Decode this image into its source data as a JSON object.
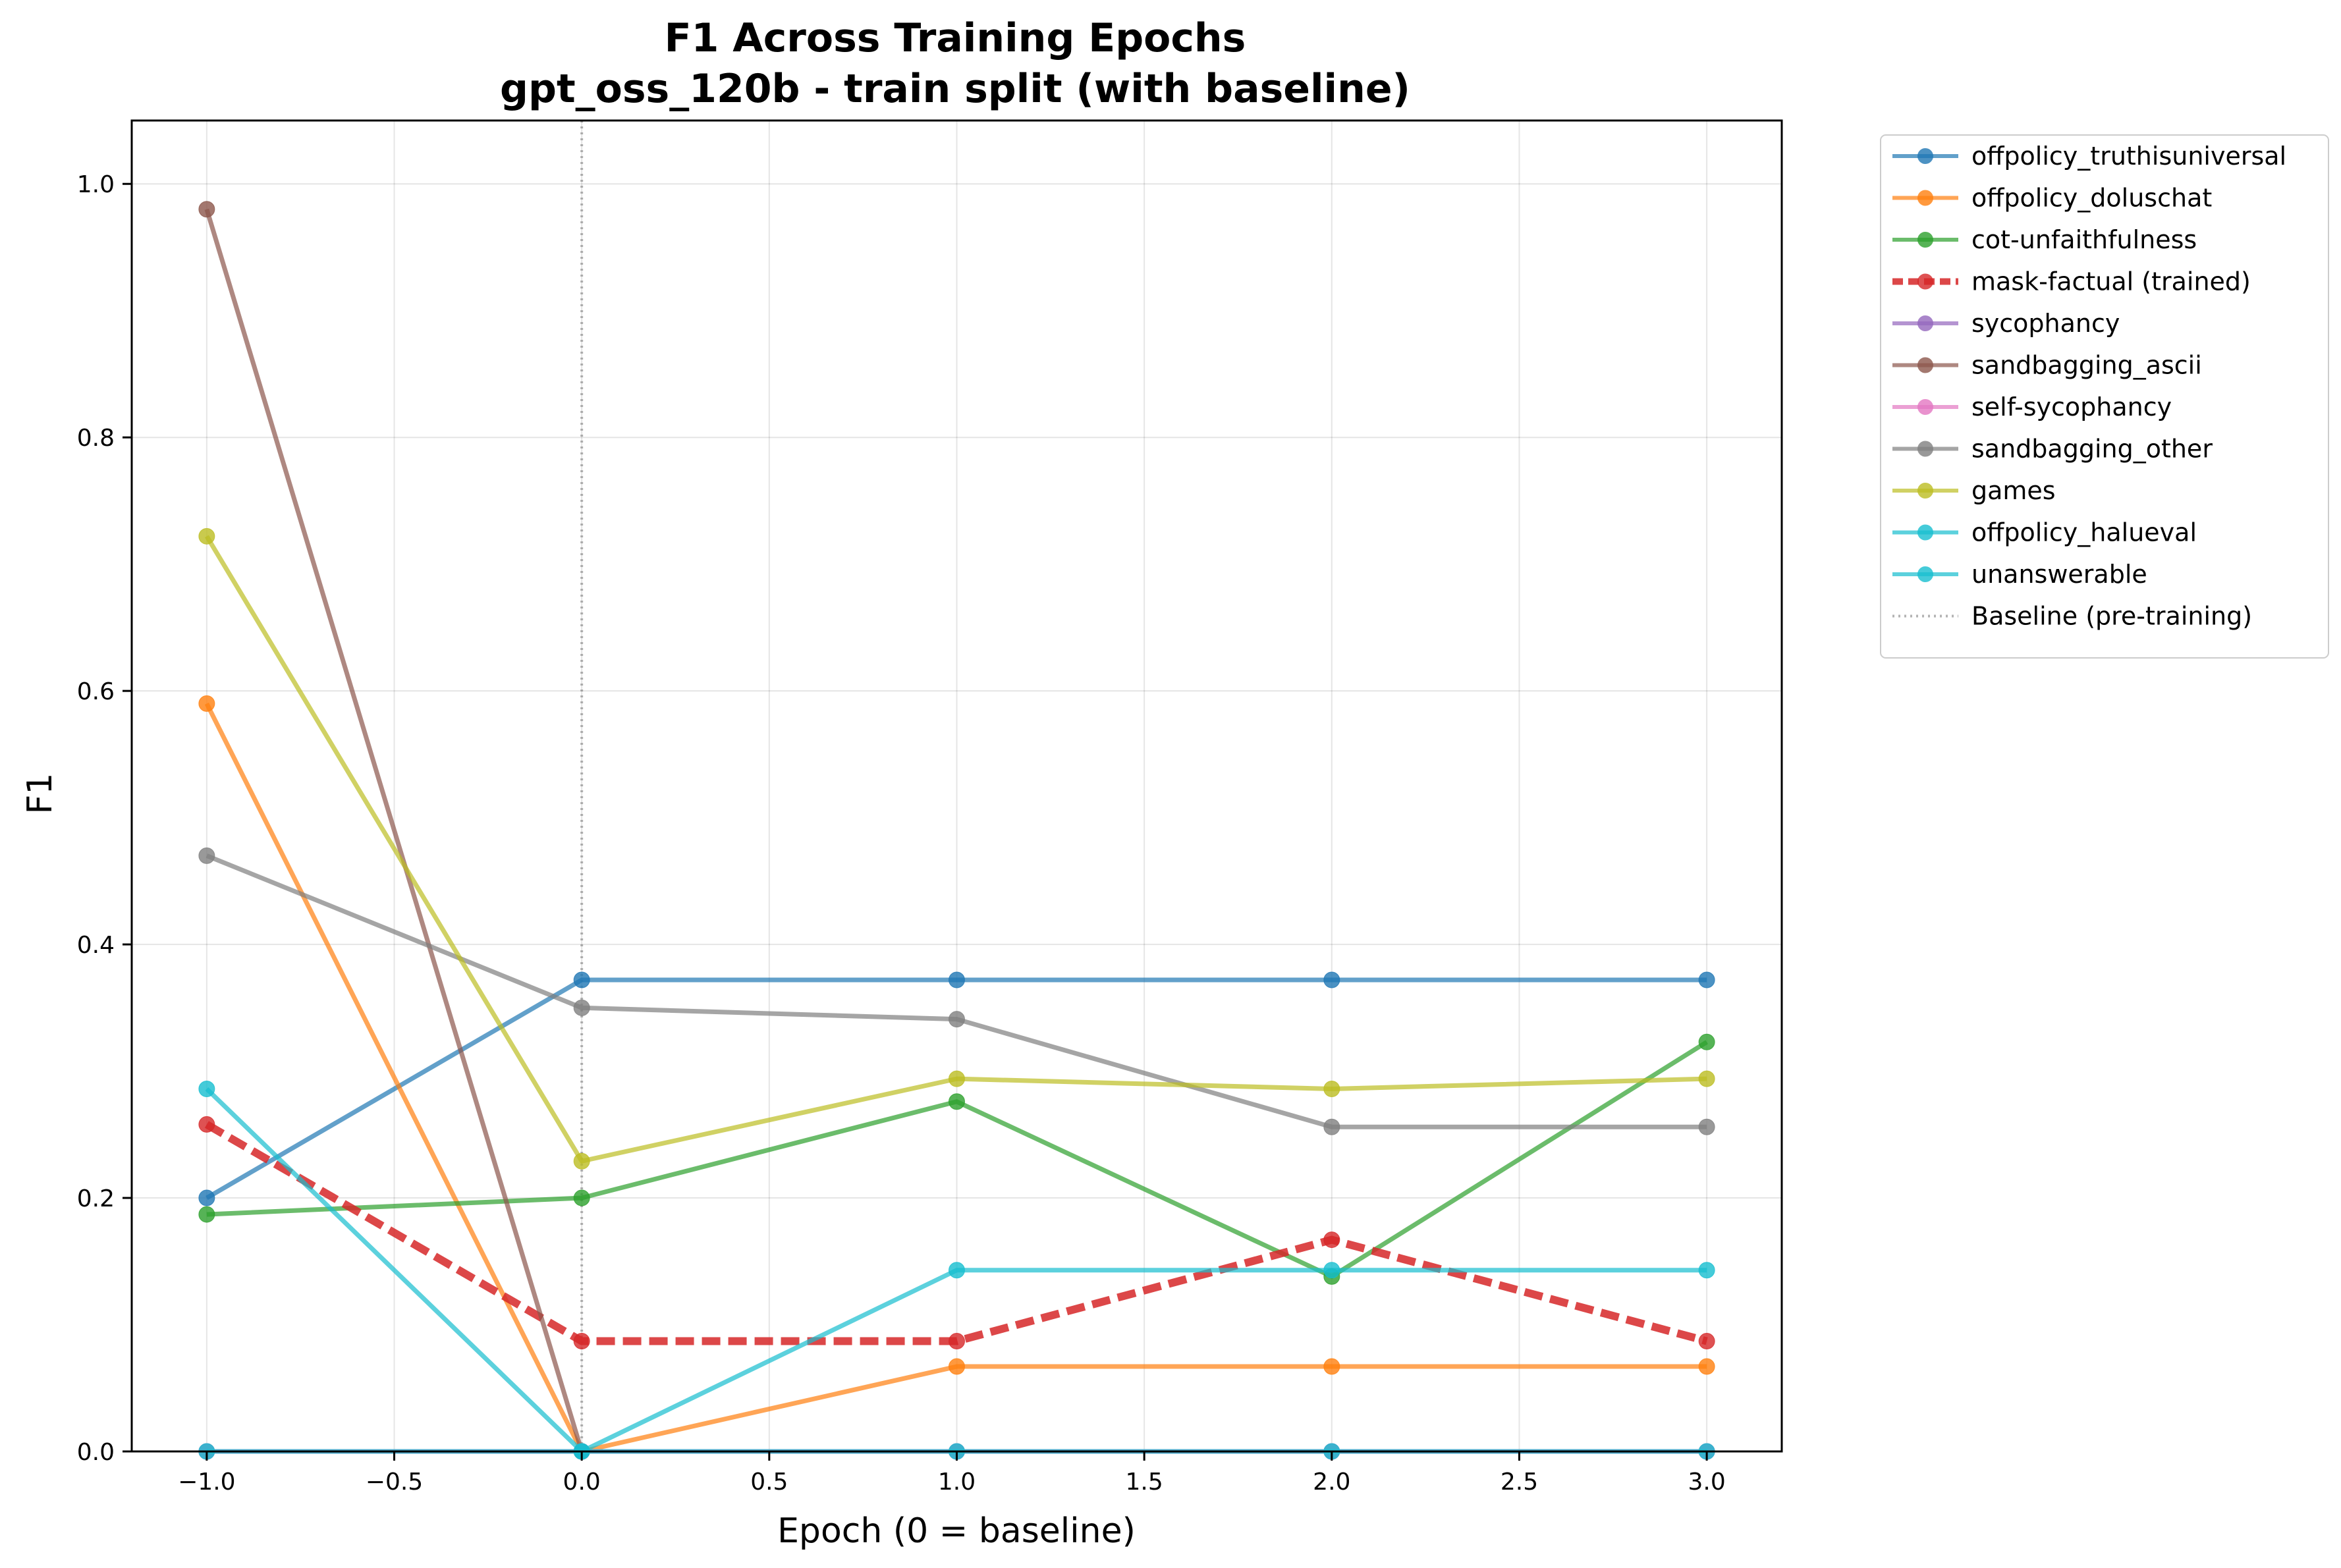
{
  "chart_data": {
    "type": "line",
    "title": "F1 Across Training Epochs",
    "subtitle": "gpt_oss_120b - train split (with baseline)",
    "xlabel": "Epoch (0 = baseline)",
    "ylabel": "F1",
    "xlim": [
      -1.2,
      3.2
    ],
    "ylim": [
      0,
      1.05
    ],
    "x_ticks": [
      -1.0,
      -0.5,
      0.0,
      0.5,
      1.0,
      1.5,
      2.0,
      2.5,
      3.0
    ],
    "x_tick_labels": [
      "−1.0",
      "−0.5",
      "0.0",
      "0.5",
      "1.0",
      "1.5",
      "2.0",
      "2.5",
      "3.0"
    ],
    "y_ticks": [
      0.0,
      0.2,
      0.4,
      0.6,
      0.8,
      1.0
    ],
    "y_tick_labels": [
      "0.0",
      "0.2",
      "0.4",
      "0.6",
      "0.8",
      "1.0"
    ],
    "grid": true,
    "legend_position": "outside upper right",
    "x": [
      -1,
      0,
      1,
      2,
      3
    ],
    "baseline_x": 0,
    "series": [
      {
        "name": "offpolicy_truthisuniversal",
        "color": "#1f77b4",
        "style": "solid",
        "values": [
          0.2,
          0.372,
          0.372,
          0.372,
          0.372
        ]
      },
      {
        "name": "offpolicy_doluschat",
        "color": "#ff7f0e",
        "style": "solid",
        "values": [
          0.59,
          0.0,
          0.067,
          0.067,
          0.067
        ]
      },
      {
        "name": "cot-unfaithfulness",
        "color": "#2ca02c",
        "style": "solid",
        "values": [
          0.187,
          0.2,
          0.276,
          0.138,
          0.323
        ]
      },
      {
        "name": "mask-factual (trained)",
        "color": "#d62728",
        "style": "dashed",
        "values": [
          0.258,
          0.087,
          0.087,
          0.167,
          0.087
        ]
      },
      {
        "name": "sycophancy",
        "color": "#9467bd",
        "style": "solid",
        "values": [
          0.0,
          0.0,
          0.0,
          0.0,
          0.0
        ]
      },
      {
        "name": "sandbagging_ascii",
        "color": "#8c564b",
        "style": "solid",
        "values": [
          0.98,
          0.0,
          null,
          null,
          null
        ]
      },
      {
        "name": "self-sycophancy",
        "color": "#e377c2",
        "style": "solid",
        "values": [
          0.0,
          0.0,
          0.0,
          0.0,
          0.0
        ]
      },
      {
        "name": "sandbagging_other",
        "color": "#7f7f7f",
        "style": "solid",
        "values": [
          0.47,
          0.35,
          0.341,
          0.256,
          0.256
        ]
      },
      {
        "name": "games",
        "color": "#bcbd22",
        "style": "solid",
        "values": [
          0.722,
          0.229,
          0.294,
          0.286,
          0.294
        ]
      },
      {
        "name": "offpolicy_halueval",
        "color": "#17becf",
        "style": "solid",
        "values": [
          0.0,
          0.0,
          0.0,
          0.0,
          0.0
        ]
      },
      {
        "name": "unanswerable",
        "color": "#17becf",
        "style": "solid",
        "values": [
          0.286,
          0.0,
          0.143,
          0.143,
          0.143
        ]
      }
    ],
    "baseline_legend_label": "Baseline (pre-training)"
  }
}
